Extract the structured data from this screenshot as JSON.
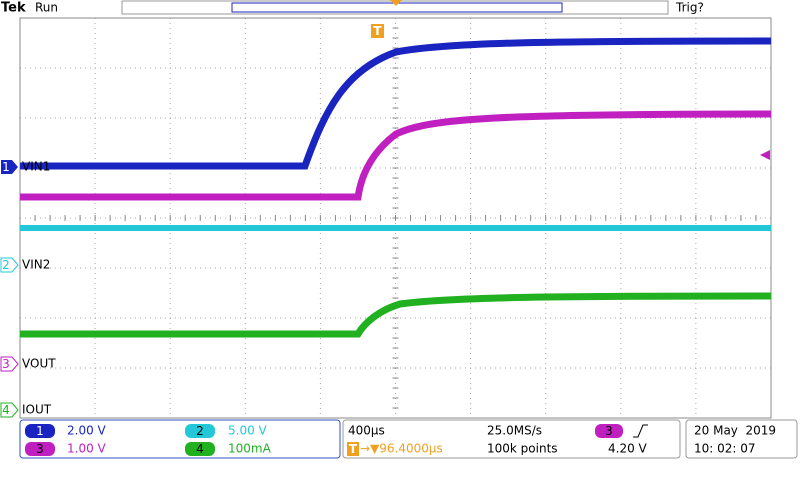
{
  "header": {
    "brand": "Tek",
    "status": "Run",
    "trigger_status": "Trig?",
    "trigger_marker": "T"
  },
  "channels": [
    {
      "number": "1",
      "name": "VIN1"
    },
    {
      "number": "2",
      "name": "VIN2"
    },
    {
      "number": "3",
      "name": "VOUT"
    },
    {
      "number": "4",
      "name": "IOUT"
    }
  ],
  "vertical": [
    {
      "channel": "1",
      "scale": "2.00 V"
    },
    {
      "channel": "2",
      "scale": "5.00 V"
    },
    {
      "channel": "3",
      "scale": "1.00 V"
    },
    {
      "channel": "4",
      "scale": "100mA"
    }
  ],
  "horizontal": {
    "time_per_div": "400µs",
    "sample_rate": "25.0MS/s",
    "trigger_icon": "T",
    "trigger_position": "→▼96.4000µs",
    "record_length": "100k points"
  },
  "trigger": {
    "source": "3",
    "level": "4.20 V"
  },
  "clock": {
    "date": "20 May  2019",
    "time": "10: 02: 07"
  }
}
